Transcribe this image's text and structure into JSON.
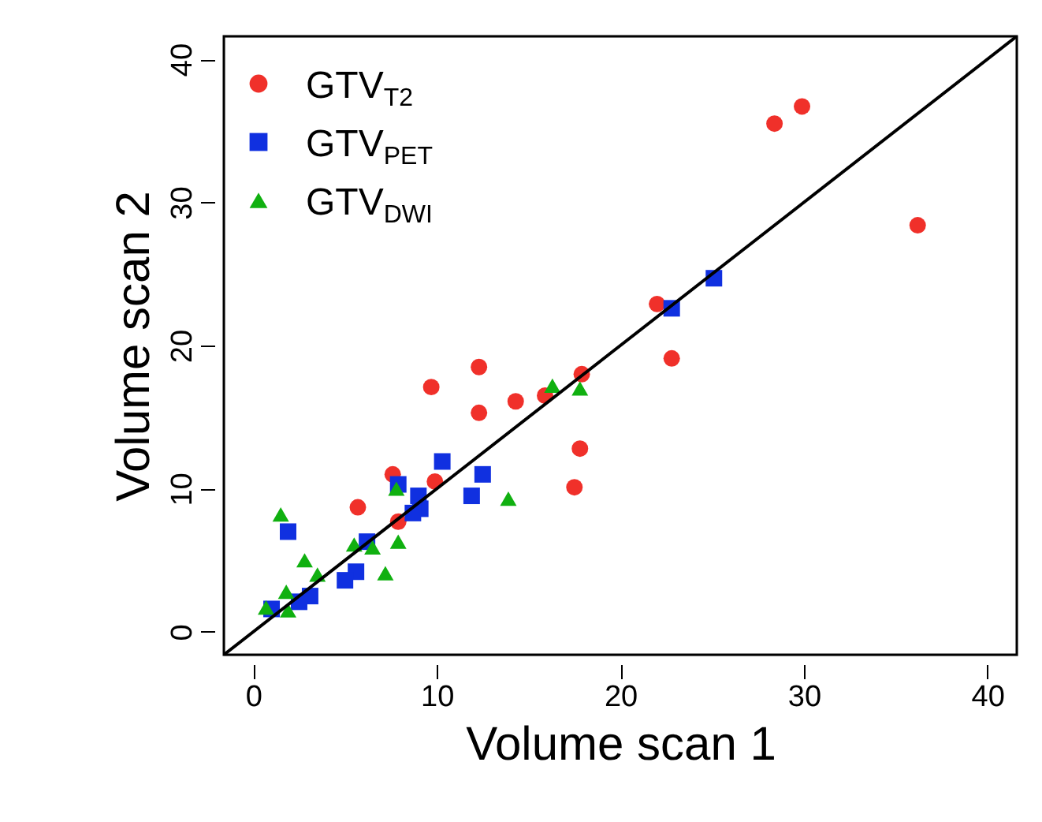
{
  "chart_data": {
    "type": "scatter",
    "xlabel": "Volume scan 1",
    "ylabel": "Volume scan 2",
    "xlim": [
      -1.6,
      41.6
    ],
    "ylim": [
      -1.6,
      41.6
    ],
    "xticks": [
      0,
      10,
      20,
      30,
      40
    ],
    "yticks": [
      0,
      10,
      20,
      30,
      40
    ],
    "grid": false,
    "legend": "top left",
    "series": [
      {
        "name": "GTV$_{T2}$",
        "color": "#f0302a",
        "marker": "circle",
        "x": [
          28.4,
          29.9,
          36.2,
          22.0,
          22.8,
          12.3,
          9.7,
          12.3,
          14.3,
          15.9,
          17.9,
          17.8,
          17.5,
          7.6,
          9.9,
          5.7,
          7.9
        ],
        "values": [
          35.5,
          36.7,
          28.4,
          22.9,
          19.1,
          18.5,
          17.1,
          15.3,
          16.1,
          16.5,
          18.0,
          12.8,
          10.1,
          11.0,
          10.5,
          8.7,
          7.7
        ]
      },
      {
        "name": "GTV$_{PET}$",
        "color": "#1030e0",
        "marker": "square",
        "x": [
          25.1,
          22.8,
          10.3,
          12.5,
          11.9,
          7.9,
          9.0,
          9.1,
          8.7,
          1.9,
          6.2,
          5.6,
          5.0,
          3.1,
          2.5,
          1.0
        ],
        "values": [
          24.7,
          22.6,
          11.9,
          11.0,
          9.5,
          10.3,
          9.5,
          8.6,
          8.3,
          7.0,
          6.3,
          4.2,
          3.6,
          2.5,
          2.1,
          1.6
        ]
      },
      {
        "name": "GTV$_{DWI}$",
        "color": "#10b010",
        "marker": "triangle",
        "x": [
          16.3,
          17.8,
          13.9,
          7.8,
          1.5,
          7.9,
          6.5,
          5.5,
          7.2,
          2.8,
          3.5,
          1.8,
          0.7,
          1.9
        ],
        "values": [
          17.2,
          17.0,
          9.3,
          10.0,
          8.2,
          6.3,
          5.9,
          6.1,
          4.1,
          5.0,
          4.0,
          2.8,
          1.7,
          1.5
        ]
      },
      {
        "type": "line",
        "color": "#000000",
        "line_style": "solid",
        "marker": "none",
        "x": [
          -1.6,
          41.6
        ],
        "values": [
          -1.6,
          41.6
        ]
      }
    ]
  }
}
